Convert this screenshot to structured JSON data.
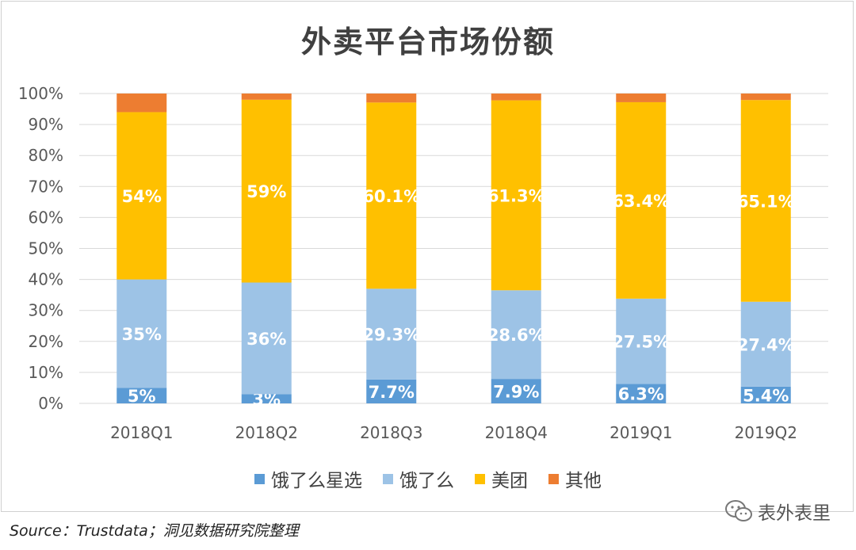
{
  "chart_data": {
    "type": "bar",
    "stacked": true,
    "title": "外卖平台市场份额",
    "categories": [
      "2018Q1",
      "2018Q2",
      "2018Q3",
      "2018Q4",
      "2019Q1",
      "2019Q2"
    ],
    "series": [
      {
        "name": "饿了么星选",
        "color": "#5b9bd5",
        "values": [
          5,
          3,
          7.7,
          7.9,
          6.3,
          5.4
        ],
        "labels": [
          "5%",
          "3%",
          "7.7%",
          "7.9%",
          "6.3%",
          "5.4%"
        ]
      },
      {
        "name": "饿了么",
        "color": "#9dc3e6",
        "values": [
          35,
          36,
          29.3,
          28.6,
          27.5,
          27.4
        ],
        "labels": [
          "35%",
          "36%",
          "29.3%",
          "28.6%",
          "27.5%",
          "27.4%"
        ]
      },
      {
        "name": "美团",
        "color": "#ffc000",
        "values": [
          54,
          59,
          60.1,
          61.3,
          63.4,
          65.1
        ],
        "labels": [
          "54%",
          "59%",
          "60.1%",
          "61.3%",
          "63.4%",
          "65.1%"
        ]
      },
      {
        "name": "其他",
        "color": "#ed7d31",
        "values": [
          6,
          2,
          2.9,
          2.2,
          2.8,
          2.1
        ],
        "labels": [
          "",
          "",
          "",
          "",
          "",
          ""
        ]
      }
    ],
    "ylim": [
      0,
      100
    ],
    "yticks": [
      "0%",
      "10%",
      "20%",
      "30%",
      "40%",
      "50%",
      "60%",
      "70%",
      "80%",
      "90%",
      "100%"
    ],
    "grid": true,
    "legend_position": "bottom"
  },
  "source": "Source：Trustdata；洞见数据研究院整理",
  "watermark": "表外表里"
}
